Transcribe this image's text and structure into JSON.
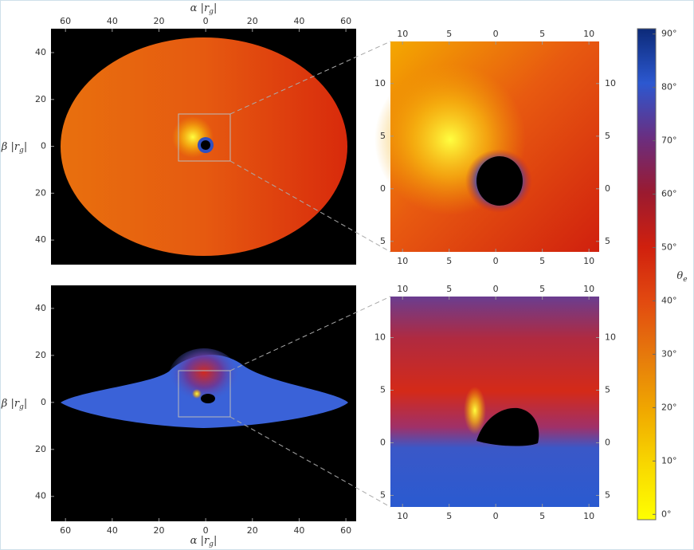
{
  "chart_data": [
    {
      "type": "image",
      "xlim": [
        -66.2,
        64.4
      ],
      "xticks": [
        {
          "value": -60,
          "label": "60"
        },
        {
          "value": -40,
          "label": "40"
        },
        {
          "value": -20,
          "label": "20"
        },
        0,
        20,
        40,
        60
      ],
      "xtick_sides": [
        "top"
      ],
      "ylim": [
        -50.5,
        50.2
      ],
      "yticks": [
        40,
        20,
        0,
        {
          "value": -20,
          "label": "20"
        },
        {
          "value": -40,
          "label": "40"
        }
      ],
      "ytick_sides": [
        "left"
      ],
      "xlabel": [
        "α |r",
        "g",
        "|"
      ],
      "xlabel_side": "top",
      "ylabel": [
        "β |r",
        "g",
        "|"
      ]
    },
    {
      "type": "image",
      "xlim": [
        -11.3,
        11.1
      ],
      "xticks": [
        {
          "value": -10,
          "label": "10"
        },
        {
          "value": -5,
          "label": "5"
        },
        0,
        5,
        10
      ],
      "xtick_sides": [
        "top",
        "bottom"
      ],
      "ylim": [
        -6,
        14
      ],
      "yticks": [
        10,
        5,
        0,
        {
          "value": -5,
          "label": "5"
        }
      ],
      "ytick_sides": [
        "left",
        "right"
      ]
    },
    {
      "type": "image",
      "xlim": [
        -66.2,
        64.4
      ],
      "xticks": [
        {
          "value": -60,
          "label": "60"
        },
        {
          "value": -40,
          "label": "40"
        },
        {
          "value": -20,
          "label": "20"
        },
        0,
        20,
        40,
        60
      ],
      "xtick_sides": [
        "bottom"
      ],
      "ylim": [
        -50.6,
        49.8
      ],
      "yticks": [
        40,
        20,
        0,
        {
          "value": -20,
          "label": "20"
        },
        {
          "value": -40,
          "label": "40"
        }
      ],
      "ytick_sides": [
        "left"
      ],
      "xlabel": [
        "α |r",
        "g",
        "|"
      ],
      "xlabel_side": "bottom",
      "ylabel": [
        "β |r",
        "g",
        "|"
      ]
    },
    {
      "type": "image",
      "xlim": [
        -11.3,
        11.1
      ],
      "xticks": [
        {
          "value": -10,
          "label": "10"
        },
        {
          "value": -5,
          "label": "5"
        },
        0,
        5,
        10
      ],
      "xtick_sides": [
        "top",
        "bottom"
      ],
      "ylim": [
        -6.1,
        13.9
      ],
      "yticks": [
        10,
        5,
        0,
        {
          "value": -5,
          "label": "5"
        }
      ],
      "ytick_sides": [
        "left",
        "right"
      ]
    },
    {
      "type": "colorbar",
      "ylim": [
        -1,
        91
      ],
      "yticks": [
        {
          "value": 0,
          "label": "0°"
        },
        {
          "value": 10,
          "label": "10°"
        },
        {
          "value": 20,
          "label": "20°"
        },
        {
          "value": 30,
          "label": "30°"
        },
        {
          "value": 40,
          "label": "40°"
        },
        {
          "value": 50,
          "label": "50°"
        },
        {
          "value": 60,
          "label": "60°"
        },
        {
          "value": 70,
          "label": "70°"
        },
        {
          "value": 80,
          "label": "80°"
        },
        {
          "value": 90,
          "label": "90°"
        }
      ],
      "ytick_sides": [
        "right"
      ],
      "ylabel": [
        "θ",
        "e"
      ],
      "colormap": [
        "#ffff00",
        "#f8d800",
        "#f0a800",
        "#e67a0c",
        "#e24a10",
        "#d0200e",
        "#9a1a30",
        "#6a2e80",
        "#2c58d0",
        "#0c2a78"
      ]
    }
  ]
}
